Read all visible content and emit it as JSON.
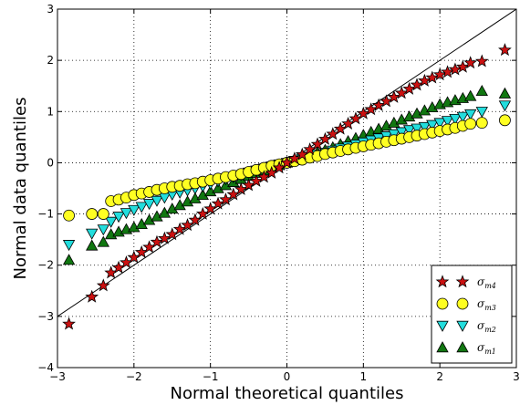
{
  "chart_data": {
    "type": "scatter",
    "title": "",
    "xlabel": "Normal theoretical quantiles",
    "ylabel": "Normal data quantiles",
    "xlim": [
      -3,
      3
    ],
    "ylim": [
      -4,
      3
    ],
    "xticks": [
      "−3",
      "−2",
      "−1",
      "0",
      "1",
      "2",
      "3"
    ],
    "yticks": [
      "−4",
      "−3",
      "−2",
      "−1",
      "0",
      "1",
      "2",
      "3"
    ],
    "grid": true,
    "legend_position": "bottom-right",
    "reference_line": {
      "x": [
        -3,
        3
      ],
      "y": [
        -3,
        3
      ],
      "color": "#000000"
    },
    "series": [
      {
        "name": "σm4",
        "name_main": "σ",
        "name_sub": "m4",
        "marker": "star",
        "color": "#cc1111",
        "scale": 1.1,
        "x": [
          -2.85,
          -2.55,
          -2.4,
          -2.3,
          -2.2,
          -2.1,
          -2.0,
          -1.9,
          -1.8,
          -1.7,
          -1.6,
          -1.5,
          -1.4,
          -1.3,
          -1.2,
          -1.1,
          -1.0,
          -0.9,
          -0.8,
          -0.7,
          -0.6,
          -0.5,
          -0.4,
          -0.3,
          -0.2,
          -0.1,
          0.0,
          0.1,
          0.2,
          0.3,
          0.4,
          0.5,
          0.6,
          0.7,
          0.8,
          0.9,
          1.0,
          1.1,
          1.2,
          1.3,
          1.4,
          1.5,
          1.6,
          1.7,
          1.8,
          1.9,
          2.0,
          2.1,
          2.2,
          2.3,
          2.4,
          2.55,
          2.85
        ],
        "y": [
          -3.15,
          -2.62,
          -2.4,
          -2.15,
          -2.05,
          -1.95,
          -1.85,
          -1.75,
          -1.65,
          -1.55,
          -1.48,
          -1.4,
          -1.3,
          -1.22,
          -1.12,
          -1.0,
          -0.9,
          -0.8,
          -0.72,
          -0.62,
          -0.52,
          -0.44,
          -0.36,
          -0.28,
          -0.2,
          -0.1,
          0.0,
          0.08,
          0.16,
          0.26,
          0.36,
          0.46,
          0.56,
          0.66,
          0.76,
          0.86,
          0.96,
          1.04,
          1.12,
          1.2,
          1.28,
          1.36,
          1.44,
          1.52,
          1.6,
          1.66,
          1.72,
          1.77,
          1.82,
          1.87,
          1.95,
          1.98,
          2.2
        ]
      },
      {
        "name": "σm3",
        "name_main": "σ",
        "name_sub": "m3",
        "marker": "circle",
        "color": "#ffff22",
        "scale": 1.0,
        "x": [
          -2.85,
          -2.55,
          -2.4,
          -2.3,
          -2.2,
          -2.1,
          -2.0,
          -1.9,
          -1.8,
          -1.7,
          -1.6,
          -1.5,
          -1.4,
          -1.3,
          -1.2,
          -1.1,
          -1.0,
          -0.9,
          -0.8,
          -0.7,
          -0.6,
          -0.5,
          -0.4,
          -0.3,
          -0.2,
          -0.1,
          0.0,
          0.1,
          0.2,
          0.3,
          0.4,
          0.5,
          0.6,
          0.7,
          0.8,
          0.9,
          1.0,
          1.1,
          1.2,
          1.3,
          1.4,
          1.5,
          1.6,
          1.7,
          1.8,
          1.9,
          2.0,
          2.1,
          2.2,
          2.3,
          2.4,
          2.55,
          2.85
        ],
        "y": [
          -1.03,
          -1.0,
          -1.0,
          -0.75,
          -0.72,
          -0.68,
          -0.63,
          -0.6,
          -0.57,
          -0.53,
          -0.5,
          -0.47,
          -0.45,
          -0.42,
          -0.4,
          -0.37,
          -0.34,
          -0.31,
          -0.28,
          -0.25,
          -0.22,
          -0.18,
          -0.14,
          -0.1,
          -0.06,
          -0.03,
          0.0,
          0.03,
          0.06,
          0.1,
          0.13,
          0.17,
          0.2,
          0.23,
          0.26,
          0.29,
          0.32,
          0.35,
          0.38,
          0.41,
          0.44,
          0.47,
          0.5,
          0.53,
          0.56,
          0.59,
          0.62,
          0.65,
          0.68,
          0.72,
          0.76,
          0.78,
          0.83
        ]
      },
      {
        "name": "σm2",
        "name_main": "σ",
        "name_sub": "m2",
        "marker": "triangle-down",
        "color": "#22dddd",
        "scale": 1.0,
        "x": [
          -2.85,
          -2.55,
          -2.4,
          -2.3,
          -2.2,
          -2.1,
          -2.0,
          -1.9,
          -1.8,
          -1.7,
          -1.6,
          -1.5,
          -1.4,
          -1.3,
          -1.2,
          -1.1,
          -1.0,
          -0.9,
          -0.8,
          -0.7,
          -0.6,
          -0.5,
          -0.4,
          -0.3,
          -0.2,
          -0.1,
          0.0,
          0.1,
          0.2,
          0.3,
          0.4,
          0.5,
          0.6,
          0.7,
          0.8,
          0.9,
          1.0,
          1.1,
          1.2,
          1.3,
          1.4,
          1.5,
          1.6,
          1.7,
          1.8,
          1.9,
          2.0,
          2.1,
          2.2,
          2.3,
          2.4,
          2.55,
          2.85
        ],
        "y": [
          -1.6,
          -1.38,
          -1.3,
          -1.15,
          -1.05,
          -0.98,
          -0.92,
          -0.86,
          -0.8,
          -0.74,
          -0.68,
          -0.62,
          -0.58,
          -0.54,
          -0.5,
          -0.46,
          -0.41,
          -0.36,
          -0.32,
          -0.28,
          -0.24,
          -0.19,
          -0.15,
          -0.11,
          -0.07,
          -0.03,
          0.0,
          0.04,
          0.08,
          0.12,
          0.16,
          0.2,
          0.24,
          0.28,
          0.32,
          0.36,
          0.4,
          0.44,
          0.48,
          0.52,
          0.56,
          0.6,
          0.64,
          0.67,
          0.7,
          0.74,
          0.78,
          0.82,
          0.86,
          0.9,
          0.95,
          1.0,
          1.12
        ]
      },
      {
        "name": "σm1",
        "name_main": "σ",
        "name_sub": "m1",
        "marker": "triangle-up",
        "color": "#117711",
        "scale": 1.0,
        "x": [
          -2.85,
          -2.55,
          -2.4,
          -2.3,
          -2.2,
          -2.1,
          -2.0,
          -1.9,
          -1.8,
          -1.7,
          -1.6,
          -1.5,
          -1.4,
          -1.3,
          -1.2,
          -1.1,
          -1.0,
          -0.9,
          -0.8,
          -0.7,
          -0.6,
          -0.5,
          -0.4,
          -0.3,
          -0.2,
          -0.1,
          0.0,
          0.1,
          0.2,
          0.3,
          0.4,
          0.5,
          0.6,
          0.7,
          0.8,
          0.9,
          1.0,
          1.1,
          1.2,
          1.3,
          1.4,
          1.5,
          1.6,
          1.7,
          1.8,
          1.9,
          2.0,
          2.1,
          2.2,
          2.3,
          2.4,
          2.55,
          2.85
        ],
        "y": [
          -1.9,
          -1.62,
          -1.55,
          -1.4,
          -1.35,
          -1.3,
          -1.26,
          -1.2,
          -1.12,
          -1.05,
          -0.98,
          -0.9,
          -0.83,
          -0.76,
          -0.7,
          -0.63,
          -0.56,
          -0.5,
          -0.44,
          -0.38,
          -0.32,
          -0.26,
          -0.2,
          -0.15,
          -0.1,
          -0.05,
          0.0,
          0.05,
          0.1,
          0.15,
          0.2,
          0.25,
          0.3,
          0.36,
          0.42,
          0.48,
          0.54,
          0.6,
          0.66,
          0.72,
          0.78,
          0.84,
          0.9,
          0.96,
          1.02,
          1.08,
          1.14,
          1.18,
          1.22,
          1.26,
          1.3,
          1.4,
          1.35
        ]
      }
    ]
  }
}
